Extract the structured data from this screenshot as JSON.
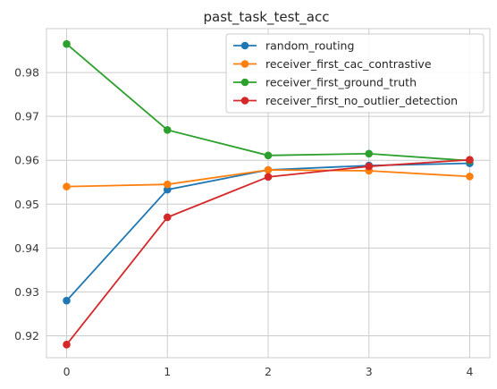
{
  "chart_data": {
    "type": "line",
    "title": "past_task_test_acc",
    "xlabel": "",
    "ylabel": "",
    "x": [
      0,
      1,
      2,
      3,
      4
    ],
    "x_ticks": [
      "0",
      "1",
      "2",
      "3",
      "4"
    ],
    "xlim": [
      -0.2,
      4.2
    ],
    "ylim": [
      0.915,
      0.99
    ],
    "y_ticks": [
      "0.92",
      "0.93",
      "0.94",
      "0.95",
      "0.96",
      "0.97",
      "0.98"
    ],
    "grid": true,
    "legend_position": "top-right",
    "series": [
      {
        "name": "random_routing",
        "color": "#1f77b4",
        "values": [
          0.928,
          0.9533,
          0.9578,
          0.9588,
          0.9593
        ]
      },
      {
        "name": "receiver_first_cac_contrastive",
        "color": "#ff7f0e",
        "values": [
          0.954,
          0.9545,
          0.9578,
          0.9576,
          0.9563
        ]
      },
      {
        "name": "receiver_first_ground_truth",
        "color": "#2ca02c",
        "values": [
          0.9865,
          0.9669,
          0.9611,
          0.9615,
          0.9599
        ]
      },
      {
        "name": "receiver_first_no_outlier_detection",
        "color": "#d62728",
        "values": [
          0.918,
          0.947,
          0.9562,
          0.9586,
          0.9601
        ]
      }
    ]
  }
}
